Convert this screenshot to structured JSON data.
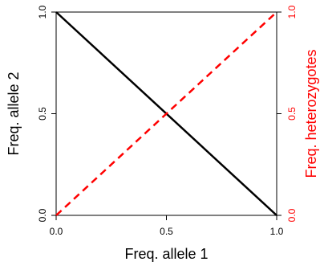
{
  "chart_data": {
    "type": "line",
    "title": "",
    "xlabel": "Freq. allele 1",
    "ylabel_left": "Freq. allele 2",
    "ylabel_right": "Freq. heterozygotes",
    "xlim": [
      0.0,
      1.0
    ],
    "ylim_left": [
      0.0,
      1.0
    ],
    "ylim_right": [
      0.0,
      1.0
    ],
    "x_ticks": [
      "0.0",
      "0.5",
      "1.0"
    ],
    "y_left_ticks": [
      "0.0",
      "0.5",
      "1.0"
    ],
    "y_right_ticks": [
      "0.0",
      "0.5",
      "1.0"
    ],
    "grid": false,
    "legend": "none",
    "series": [
      {
        "axis": "left",
        "style": "solid",
        "color": "#000000",
        "x": [
          0.0,
          1.0
        ],
        "y": [
          1.0,
          0.0
        ]
      },
      {
        "axis": "right",
        "style": "dashed",
        "color": "#ff0000",
        "x": [
          0.0,
          1.0
        ],
        "y": [
          0.0,
          1.0
        ]
      }
    ]
  }
}
